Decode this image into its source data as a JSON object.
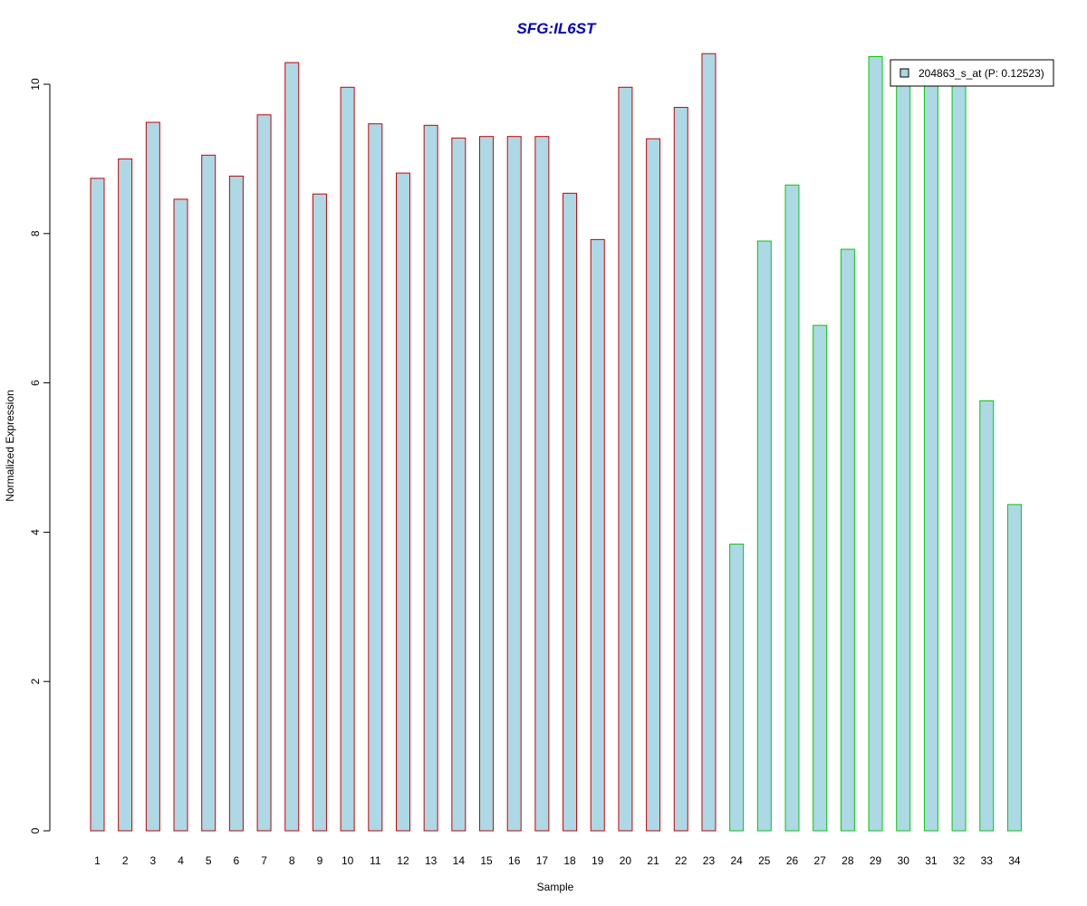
{
  "chart_data": {
    "type": "bar",
    "title": "SFG:IL6ST",
    "xlabel": "Sample",
    "ylabel": "Normalized Expression",
    "ylim": [
      0,
      10.4
    ],
    "yticks": [
      0,
      2,
      4,
      6,
      8,
      10
    ],
    "grid": false,
    "categories": [
      "1",
      "2",
      "3",
      "4",
      "5",
      "6",
      "7",
      "8",
      "9",
      "10",
      "11",
      "12",
      "13",
      "14",
      "15",
      "16",
      "17",
      "18",
      "19",
      "20",
      "21",
      "22",
      "23",
      "24",
      "25",
      "26",
      "27",
      "28",
      "29",
      "30",
      "31",
      "32",
      "33",
      "34"
    ],
    "series": [
      {
        "name": "204863_s_at (P: 0.12523)",
        "values": [
          8.74,
          9.0,
          9.49,
          8.46,
          9.05,
          8.77,
          9.59,
          10.29,
          8.53,
          9.96,
          9.47,
          8.81,
          9.45,
          9.28,
          9.3,
          9.3,
          9.3,
          8.54,
          7.92,
          9.96,
          9.27,
          9.69,
          10.41,
          3.84,
          7.9,
          8.65,
          6.77,
          7.79,
          10.37,
          9.98,
          10.0,
          10.0,
          5.76,
          4.37
        ]
      }
    ],
    "group_sizes": [
      23,
      11
    ],
    "colors": {
      "fill": "#add8e6",
      "border_group1": "#cc0000",
      "border_group2": "#00cc00",
      "title": "#0000cc"
    },
    "legend_position": "top-right"
  }
}
